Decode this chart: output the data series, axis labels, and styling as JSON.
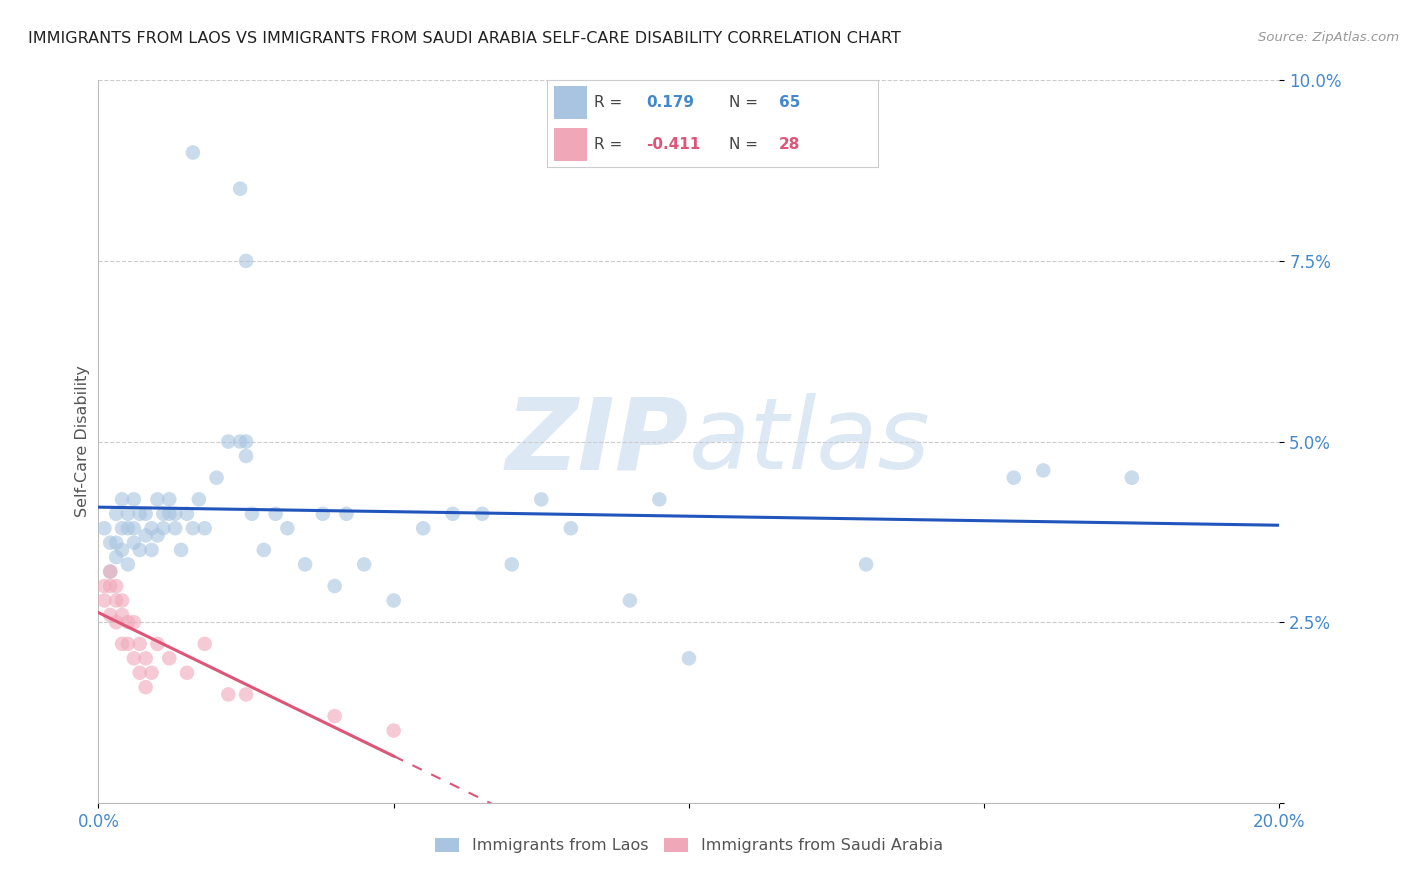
{
  "title": "IMMIGRANTS FROM LAOS VS IMMIGRANTS FROM SAUDI ARABIA SELF-CARE DISABILITY CORRELATION CHART",
  "source": "Source: ZipAtlas.com",
  "ylabel": "Self-Care Disability",
  "legend_label1": "Immigrants from Laos",
  "legend_label2": "Immigrants from Saudi Arabia",
  "R1": 0.179,
  "N1": 65,
  "R2": -0.411,
  "N2": 28,
  "xlim": [
    0.0,
    0.2
  ],
  "ylim": [
    0.0,
    0.1
  ],
  "color_laos": "#a8c4e0",
  "color_saudi": "#f0a8b8",
  "line_color_laos": "#2255bb",
  "line_color_saudi": "#dd5577",
  "marker_size": 110,
  "marker_alpha": 0.6,
  "laos_x": [
    0.001,
    0.002,
    0.002,
    0.003,
    0.003,
    0.003,
    0.004,
    0.004,
    0.004,
    0.005,
    0.005,
    0.005,
    0.006,
    0.006,
    0.006,
    0.007,
    0.007,
    0.008,
    0.008,
    0.009,
    0.009,
    0.01,
    0.01,
    0.011,
    0.011,
    0.012,
    0.012,
    0.013,
    0.013,
    0.014,
    0.015,
    0.016,
    0.017,
    0.018,
    0.02,
    0.022,
    0.024,
    0.025,
    0.025,
    0.026,
    0.028,
    0.03,
    0.032,
    0.035,
    0.038,
    0.04,
    0.042,
    0.045,
    0.05,
    0.055,
    0.06,
    0.065,
    0.07,
    0.075,
    0.08,
    0.09,
    0.095,
    0.1,
    0.13,
    0.155,
    0.016,
    0.024,
    0.025,
    0.16,
    0.175
  ],
  "laos_y": [
    0.038,
    0.032,
    0.036,
    0.034,
    0.04,
    0.036,
    0.038,
    0.035,
    0.042,
    0.033,
    0.04,
    0.038,
    0.036,
    0.042,
    0.038,
    0.04,
    0.035,
    0.037,
    0.04,
    0.035,
    0.038,
    0.042,
    0.037,
    0.04,
    0.038,
    0.04,
    0.042,
    0.038,
    0.04,
    0.035,
    0.04,
    0.038,
    0.042,
    0.038,
    0.045,
    0.05,
    0.05,
    0.048,
    0.05,
    0.04,
    0.035,
    0.04,
    0.038,
    0.033,
    0.04,
    0.03,
    0.04,
    0.033,
    0.028,
    0.038,
    0.04,
    0.04,
    0.033,
    0.042,
    0.038,
    0.028,
    0.042,
    0.02,
    0.033,
    0.045,
    0.09,
    0.085,
    0.075,
    0.046,
    0.045
  ],
  "saudi_x": [
    0.001,
    0.001,
    0.002,
    0.002,
    0.002,
    0.003,
    0.003,
    0.003,
    0.004,
    0.004,
    0.004,
    0.005,
    0.005,
    0.006,
    0.006,
    0.007,
    0.007,
    0.008,
    0.008,
    0.009,
    0.01,
    0.012,
    0.015,
    0.018,
    0.022,
    0.025,
    0.04,
    0.05
  ],
  "saudi_y": [
    0.03,
    0.028,
    0.03,
    0.026,
    0.032,
    0.028,
    0.025,
    0.03,
    0.022,
    0.026,
    0.028,
    0.025,
    0.022,
    0.025,
    0.02,
    0.022,
    0.018,
    0.02,
    0.016,
    0.018,
    0.022,
    0.02,
    0.018,
    0.022,
    0.015,
    0.015,
    0.012,
    0.01
  ],
  "background_color": "#ffffff",
  "grid_color": "#cccccc",
  "tick_color": "#4488cc",
  "title_color": "#222222",
  "title_fontsize": 11.5,
  "axis_label_color": "#555555",
  "watermark_color": "#dde8f5"
}
